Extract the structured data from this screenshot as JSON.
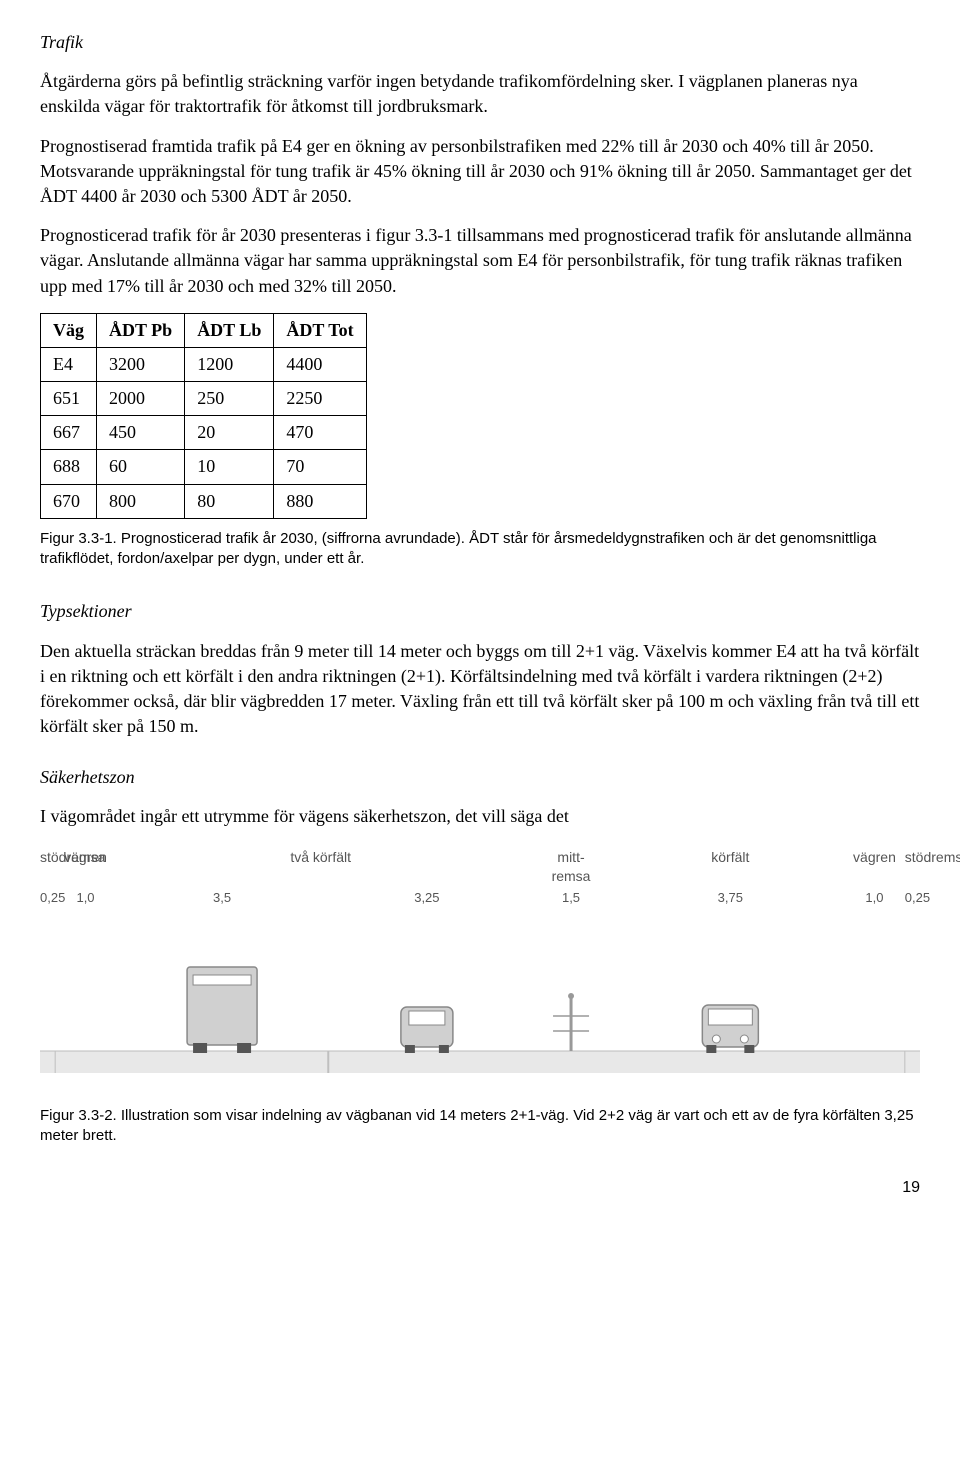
{
  "section1": {
    "heading": "Trafik",
    "p1": "Åtgärderna görs på befintlig sträckning varför ingen betydande trafikomfördelning sker. I vägplanen planeras nya enskilda vägar för traktortrafik för åtkomst till jordbruksmark.",
    "p2": "Prognostiserad framtida trafik på E4 ger en ökning av personbilstrafiken med 22% till år 2030 och 40% till år 2050. Motsvarande uppräkningstal för tung trafik är 45% ökning till år 2030 och 91% ökning till år 2050. Sammantaget ger det ÅDT 4400 år 2030 och 5300 ÅDT år 2050.",
    "p3": "Prognosticerad trafik för år 2030 presenteras i figur 3.3-1 tillsammans med prognosticerad trafik för anslutande allmänna vägar. Anslutande allmänna vägar har samma uppräkningstal som E4 för personbilstrafik, för tung trafik räknas trafiken upp med 17% till år 2030 och med 32% till 2050."
  },
  "table": {
    "columns": [
      "Väg",
      "ÅDT Pb",
      "ÅDT Lb",
      "ÅDT Tot"
    ],
    "rows": [
      [
        "E4",
        "3200",
        "1200",
        "4400"
      ],
      [
        "651",
        "2000",
        "250",
        "2250"
      ],
      [
        "667",
        "450",
        "20",
        "470"
      ],
      [
        "688",
        "60",
        "10",
        "70"
      ],
      [
        "670",
        "800",
        "80",
        "880"
      ]
    ],
    "caption": "Figur 3.3-1. Prognosticerad trafik år 2030, (siffrorna avrundade). ÅDT står för årsmedeldygnstrafiken och är det genomsnittliga trafikflödet, fordon/axelpar per dygn, under ett år."
  },
  "section2": {
    "heading": "Typsektioner",
    "p1": "Den aktuella sträckan breddas från 9 meter till 14 meter och byggs om till 2+1 väg. Växelvis kommer E4 att ha två körfält i en riktning och ett körfält i den andra riktningen (2+1). Körfältsindelning med två körfält i vardera riktningen (2+2) förekommer också, där blir vägbredden 17 meter. Växling från ett till två körfält sker på 100 m och växling från två till ett körfält sker på 150 m."
  },
  "section3": {
    "heading": "Säkerhetszon",
    "p1": "I vägområdet ingår ett utrymme för vägens säkerhetszon, det vill säga det"
  },
  "road_diagram": {
    "labels": [
      "stödremsa",
      "vägren",
      "två körfält",
      "mitt-\nremsa",
      "körfält",
      "vägren",
      "stödremsa"
    ],
    "widths_m": [
      "0,25",
      "1,0",
      "3,5",
      "3,25",
      "1,5",
      "3,75",
      "1,0",
      "0,25"
    ],
    "colors": {
      "road_surface": "#e8e8e8",
      "shoulder": "#d9b38c",
      "lane_line": "#bfbfbf",
      "vehicle_body": "#d0d0d0",
      "vehicle_outline": "#888",
      "barrier": "#999",
      "text": "#555555"
    },
    "caption": "Figur 3.3-2. Illustration som visar indelning av vägbanan vid 14 meters 2+1-väg. Vid 2+2 väg är vart och ett av de fyra körfälten 3,25 meter brett."
  },
  "page_number": "19"
}
